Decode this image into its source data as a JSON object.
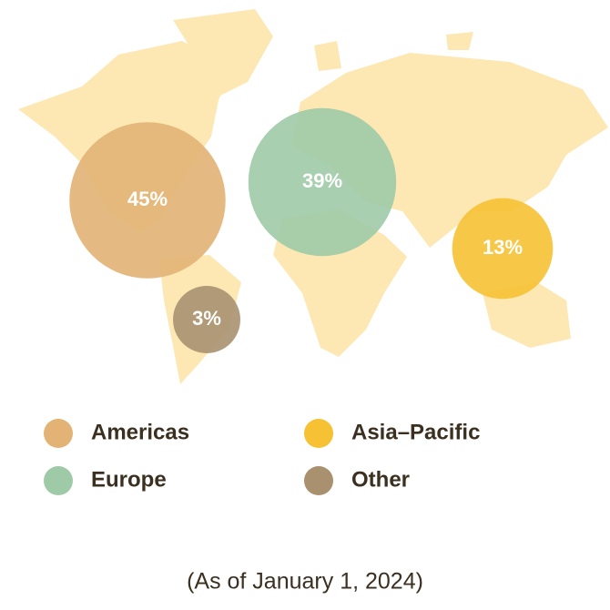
{
  "chart_data": {
    "type": "bubble",
    "categories": [
      "Americas",
      "Europe",
      "Asia–Pacific",
      "Other"
    ],
    "values": [
      45,
      39,
      13,
      3
    ],
    "value_labels": [
      "45%",
      "39%",
      "13%",
      "3%"
    ],
    "colors": [
      "#e2b374",
      "#9fcaa7",
      "#f6c133",
      "#a99170"
    ],
    "footnote": "(As of January 1, 2024)"
  }
}
